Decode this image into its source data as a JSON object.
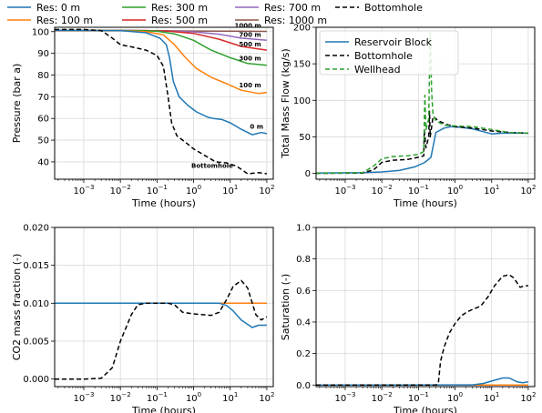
{
  "legend_top": [
    {
      "label": "Res: 0 m",
      "color": "#1f77b4",
      "dash": false
    },
    {
      "label": "Res: 300 m",
      "color": "#2ca02c",
      "dash": false
    },
    {
      "label": "Res: 700 m",
      "color": "#9467bd",
      "dash": false
    },
    {
      "label": "Bottomhole",
      "color": "#000000",
      "dash": true
    },
    {
      "label": "Res: 100 m",
      "color": "#ff7f0e",
      "dash": false
    },
    {
      "label": "Res: 500 m",
      "color": "#d62728",
      "dash": false
    },
    {
      "label": "Res: 1000 m",
      "color": "#8c564b",
      "dash": false
    }
  ],
  "chart_data": [
    {
      "type": "line",
      "xlabel": "Time (hours)",
      "ylabel": "Pressure (bar a)",
      "xscale": "log",
      "xlim": [
        0.00016,
        150
      ],
      "ylim": [
        32,
        102
      ],
      "xticks": [
        {
          "v": 0.001,
          "b": "10",
          "e": "−3"
        },
        {
          "v": 0.01,
          "b": "10",
          "e": "−2"
        },
        {
          "v": 0.1,
          "b": "10",
          "e": "−1"
        },
        {
          "v": 1,
          "b": "10",
          "e": "0"
        },
        {
          "v": 10,
          "b": "10",
          "e": "1"
        },
        {
          "v": 100,
          "b": "10",
          "e": "2"
        }
      ],
      "yticks": [
        {
          "v": 40,
          "label": "40"
        },
        {
          "v": 50,
          "label": "50"
        },
        {
          "v": 60,
          "label": "60"
        },
        {
          "v": 70,
          "label": "70"
        },
        {
          "v": 80,
          "label": "80"
        },
        {
          "v": 90,
          "label": "90"
        },
        {
          "v": 100,
          "label": "100"
        }
      ],
      "grid": true,
      "series": [
        {
          "name": "Res: 1000 m",
          "color": "#8c564b",
          "x": [
            0.00016,
            0.01,
            0.1,
            1,
            10,
            100
          ],
          "y": [
            100.5,
            100.5,
            100.4,
            100.3,
            100.2,
            100.1
          ]
        },
        {
          "name": "Res: 700 m",
          "color": "#9467bd",
          "x": [
            0.00016,
            0.05,
            0.2,
            1,
            5,
            20,
            100
          ],
          "y": [
            100.6,
            100.5,
            100.3,
            99.9,
            98.8,
            97.0,
            96.0
          ]
        },
        {
          "name": "Res: 500 m",
          "color": "#d62728",
          "x": [
            0.00016,
            0.05,
            0.2,
            1,
            5,
            20,
            100
          ],
          "y": [
            100.6,
            100.5,
            100.2,
            99.2,
            96.5,
            93.2,
            91.5
          ]
        },
        {
          "name": "Res: 300 m",
          "color": "#2ca02c",
          "x": [
            0.00016,
            0.03,
            0.1,
            0.3,
            1,
            3,
            10,
            30,
            100
          ],
          "y": [
            100.6,
            100.5,
            100.2,
            99.0,
            96.0,
            91.5,
            88.0,
            85.3,
            84.5
          ]
        },
        {
          "name": "Res: 100 m",
          "color": "#ff7f0e",
          "x": [
            0.00016,
            0.01,
            0.05,
            0.15,
            0.3,
            0.6,
            1.2,
            3,
            8,
            20,
            60,
            100
          ],
          "y": [
            100.6,
            100.5,
            100.0,
            98.5,
            94.0,
            88.0,
            83.0,
            79.0,
            76.0,
            73.0,
            71.5,
            72.0
          ]
        },
        {
          "name": "Res: 0 m",
          "color": "#1f77b4",
          "x": [
            0.00016,
            0.01,
            0.05,
            0.12,
            0.18,
            0.22,
            0.28,
            0.4,
            0.7,
            1.2,
            2.5,
            3.5,
            6,
            10,
            20,
            40,
            70,
            100
          ],
          "y": [
            100.6,
            100.5,
            99.5,
            97.0,
            94.0,
            88.0,
            77.0,
            70.0,
            66.0,
            63.0,
            60.5,
            60.0,
            59.5,
            58.0,
            55.0,
            52.5,
            53.5,
            53.0
          ]
        },
        {
          "name": "Bottomhole",
          "color": "#000000",
          "dash": true,
          "x": [
            0.00016,
            0.001,
            0.003,
            0.006,
            0.01,
            0.02,
            0.05,
            0.1,
            0.15,
            0.2,
            0.25,
            0.35,
            0.6,
            1,
            2,
            4,
            8,
            15,
            30,
            60,
            100
          ],
          "y": [
            101.0,
            101.0,
            100.5,
            97.0,
            94.0,
            93.0,
            91.5,
            89.0,
            84.0,
            70.0,
            58.0,
            52.0,
            49.0,
            46.0,
            43.0,
            40.0,
            39.5,
            38.0,
            34.5,
            35.0,
            34.5
          ]
        }
      ],
      "annotations": [
        {
          "text": "1000 m",
          "x": 70,
          "y": 101.7,
          "color": "#8c564b"
        },
        {
          "text": "700 m",
          "x": 70,
          "y": 97.5,
          "color": "#9467bd"
        },
        {
          "text": "500 m",
          "x": 70,
          "y": 93.3,
          "color": "#d62728"
        },
        {
          "text": "300 m",
          "x": 70,
          "y": 86.8,
          "color": "#2ca02c"
        },
        {
          "text": "100 m",
          "x": 70,
          "y": 74.3,
          "color": "#ff7f0e"
        },
        {
          "text": "0 m",
          "x": 80,
          "y": 55.3,
          "color": "#1f77b4"
        },
        {
          "text": "Bottomhole",
          "x": 12,
          "y": 37.3,
          "color": "#000000"
        }
      ]
    },
    {
      "type": "line",
      "xlabel": "Time (hours)",
      "ylabel": "Total Mass Flow (kg/s)",
      "xscale": "log",
      "xlim": [
        0.00016,
        150
      ],
      "ylim": [
        -8,
        200
      ],
      "xticks": [
        {
          "v": 0.001,
          "b": "10",
          "e": "−3"
        },
        {
          "v": 0.01,
          "b": "10",
          "e": "−2"
        },
        {
          "v": 0.1,
          "b": "10",
          "e": "−1"
        },
        {
          "v": 1,
          "b": "10",
          "e": "0"
        },
        {
          "v": 10,
          "b": "10",
          "e": "1"
        },
        {
          "v": 100,
          "b": "10",
          "e": "2"
        }
      ],
      "yticks": [
        {
          "v": 0,
          "label": "0"
        },
        {
          "v": 50,
          "label": "50"
        },
        {
          "v": 100,
          "label": "100"
        },
        {
          "v": 150,
          "label": "150"
        },
        {
          "v": 200,
          "label": "200"
        }
      ],
      "grid": true,
      "legend": [
        "Reservoir Block",
        "Bottomhole",
        "Wellhead"
      ],
      "series": [
        {
          "name": "Reservoir Block",
          "color": "#1f77b4",
          "x": [
            0.00016,
            0.003,
            0.01,
            0.03,
            0.08,
            0.15,
            0.22,
            0.3,
            0.5,
            0.8,
            1.5,
            3,
            6,
            10,
            20,
            50,
            100
          ],
          "y": [
            0.5,
            1,
            2,
            4,
            9,
            15,
            22,
            56,
            62,
            64,
            63,
            61,
            57,
            54,
            55,
            55,
            55
          ]
        },
        {
          "name": "Bottomhole",
          "color": "#000000",
          "dash": true,
          "x": [
            0.00016,
            0.003,
            0.006,
            0.01,
            0.02,
            0.05,
            0.1,
            0.14,
            0.145,
            0.16,
            0.19,
            0.2,
            0.21,
            0.25,
            0.35,
            0.6,
            1,
            3,
            10,
            30,
            100
          ],
          "y": [
            0,
            0.5,
            5,
            15,
            18,
            19,
            22,
            24,
            60,
            35,
            50,
            85,
            50,
            78,
            72,
            67,
            64,
            62,
            58,
            56,
            55
          ]
        },
        {
          "name": "Wellhead",
          "color": "#2ca02c",
          "dash": true,
          "x": [
            0.00016,
            0.003,
            0.006,
            0.01,
            0.02,
            0.05,
            0.1,
            0.14,
            0.15,
            0.16,
            0.19,
            0.21,
            0.23,
            0.25,
            0.3,
            0.5,
            1,
            3,
            10,
            30,
            100
          ],
          "y": [
            0,
            1,
            10,
            20,
            23,
            24,
            26,
            30,
            107,
            60,
            75,
            193,
            110,
            80,
            72,
            66,
            65,
            64,
            60,
            56,
            55
          ]
        }
      ]
    },
    {
      "type": "line",
      "xlabel": "Time (hours)",
      "ylabel": "CO2 mass fraction (-)",
      "xscale": "log",
      "xlim": [
        0.00016,
        150
      ],
      "ylim": [
        -0.001,
        0.02
      ],
      "xticks": [
        {
          "v": 0.001,
          "b": "10",
          "e": "−3"
        },
        {
          "v": 0.01,
          "b": "10",
          "e": "−2"
        },
        {
          "v": 0.1,
          "b": "10",
          "e": "−1"
        },
        {
          "v": 1,
          "b": "10",
          "e": "0"
        },
        {
          "v": 10,
          "b": "10",
          "e": "1"
        },
        {
          "v": 100,
          "b": "10",
          "e": "2"
        }
      ],
      "yticks": [
        {
          "v": 0,
          "label": "0.000"
        },
        {
          "v": 0.005,
          "label": "0.005"
        },
        {
          "v": 0.01,
          "label": "0.010"
        },
        {
          "v": 0.015,
          "label": "0.015"
        },
        {
          "v": 0.02,
          "label": "0.020"
        }
      ],
      "grid": true,
      "series": [
        {
          "name": "Res: 1000 m",
          "color": "#8c564b",
          "x": [
            0.00016,
            100
          ],
          "y": [
            0.01,
            0.01
          ]
        },
        {
          "name": "Res: 700 m",
          "color": "#9467bd",
          "x": [
            0.00016,
            100
          ],
          "y": [
            0.01,
            0.01
          ]
        },
        {
          "name": "Res: 500 m",
          "color": "#d62728",
          "x": [
            0.00016,
            100
          ],
          "y": [
            0.01,
            0.01
          ]
        },
        {
          "name": "Res: 300 m",
          "color": "#2ca02c",
          "x": [
            0.00016,
            100
          ],
          "y": [
            0.01,
            0.01
          ]
        },
        {
          "name": "Res: 100 m",
          "color": "#ff7f0e",
          "x": [
            0.00016,
            100
          ],
          "y": [
            0.01,
            0.01
          ]
        },
        {
          "name": "Res: 0 m",
          "color": "#1f77b4",
          "x": [
            0.00016,
            5,
            8,
            12,
            20,
            40,
            60,
            100
          ],
          "y": [
            0.01,
            0.01,
            0.0097,
            0.009,
            0.0078,
            0.0068,
            0.0071,
            0.0071
          ]
        },
        {
          "name": "Bottomhole",
          "color": "#000000",
          "dash": true,
          "x": [
            0.00016,
            0.001,
            0.003,
            0.006,
            0.01,
            0.02,
            0.03,
            0.05,
            0.1,
            0.2,
            0.3,
            0.5,
            1,
            3,
            5,
            8,
            12,
            20,
            30,
            50,
            70,
            100
          ],
          "y": [
            0,
            0,
            0.0001,
            0.0015,
            0.005,
            0.0085,
            0.0098,
            0.01,
            0.01,
            0.01,
            0.0098,
            0.0088,
            0.0086,
            0.0084,
            0.0088,
            0.0105,
            0.0122,
            0.013,
            0.012,
            0.0085,
            0.0078,
            0.0082
          ]
        }
      ]
    },
    {
      "type": "line",
      "xlabel": "Time (hours)",
      "ylabel": "Saturation (-)",
      "xscale": "log",
      "xlim": [
        0.00016,
        150
      ],
      "ylim": [
        -0.01,
        1.0
      ],
      "xticks": [
        {
          "v": 0.001,
          "b": "10",
          "e": "−3"
        },
        {
          "v": 0.01,
          "b": "10",
          "e": "−2"
        },
        {
          "v": 0.1,
          "b": "10",
          "e": "−1"
        },
        {
          "v": 1,
          "b": "10",
          "e": "0"
        },
        {
          "v": 10,
          "b": "10",
          "e": "1"
        },
        {
          "v": 100,
          "b": "10",
          "e": "2"
        }
      ],
      "yticks": [
        {
          "v": 0,
          "label": "0.0"
        },
        {
          "v": 0.2,
          "label": "0.2"
        },
        {
          "v": 0.4,
          "label": "0.4"
        },
        {
          "v": 0.6,
          "label": "0.6"
        },
        {
          "v": 0.8,
          "label": "0.8"
        },
        {
          "v": 1.0,
          "label": "1.0"
        }
      ],
      "grid": true,
      "series": [
        {
          "name": "Res: 1000 m",
          "color": "#8c564b",
          "x": [
            0.00016,
            100
          ],
          "y": [
            0,
            0
          ]
        },
        {
          "name": "Res: 700 m",
          "color": "#9467bd",
          "x": [
            0.00016,
            100
          ],
          "y": [
            0,
            0
          ]
        },
        {
          "name": "Res: 500 m",
          "color": "#d62728",
          "x": [
            0.00016,
            100
          ],
          "y": [
            0,
            0
          ]
        },
        {
          "name": "Res: 300 m",
          "color": "#2ca02c",
          "x": [
            0.00016,
            100
          ],
          "y": [
            0,
            0
          ]
        },
        {
          "name": "Res: 100 m",
          "color": "#ff7f0e",
          "x": [
            0.00016,
            100
          ],
          "y": [
            0,
            0
          ]
        },
        {
          "name": "Res: 0 m",
          "color": "#1f77b4",
          "x": [
            0.00016,
            3,
            6,
            10,
            20,
            30,
            50,
            70,
            100
          ],
          "y": [
            0,
            0.001,
            0.01,
            0.025,
            0.045,
            0.045,
            0.02,
            0.015,
            0.02
          ]
        },
        {
          "name": "Bottomhole",
          "color": "#000000",
          "dash": true,
          "x": [
            0.00016,
            0.3,
            0.35,
            0.4,
            0.5,
            0.7,
            1,
            1.5,
            2,
            3,
            5,
            8,
            12,
            20,
            30,
            40,
            60,
            80,
            100
          ],
          "y": [
            0,
            0,
            0.01,
            0.15,
            0.24,
            0.33,
            0.39,
            0.44,
            0.46,
            0.48,
            0.5,
            0.56,
            0.63,
            0.69,
            0.7,
            0.68,
            0.62,
            0.63,
            0.63
          ]
        }
      ]
    }
  ]
}
